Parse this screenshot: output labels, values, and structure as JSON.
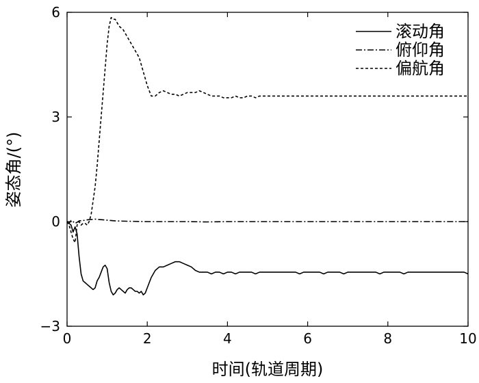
{
  "chart_data": {
    "type": "line",
    "xlabel": "时间(轨道周期)",
    "ylabel": "姿态角/(°)",
    "xlim": [
      0,
      10
    ],
    "ylim": [
      -3,
      6
    ],
    "xticks": [
      0,
      2,
      4,
      6,
      8,
      10
    ],
    "yticks": [
      -3,
      0,
      3,
      6
    ],
    "grid": false,
    "legend_position": "top-right",
    "series": [
      {
        "name": "滚动角",
        "line_style": "solid",
        "color": "#000000",
        "x": [
          0,
          0.05,
          0.1,
          0.15,
          0.2,
          0.25,
          0.3,
          0.35,
          0.4,
          0.45,
          0.5,
          0.55,
          0.6,
          0.65,
          0.7,
          0.75,
          0.8,
          0.85,
          0.9,
          0.95,
          1.0,
          1.05,
          1.1,
          1.15,
          1.2,
          1.25,
          1.3,
          1.35,
          1.4,
          1.45,
          1.5,
          1.55,
          1.6,
          1.65,
          1.7,
          1.75,
          1.8,
          1.85,
          1.9,
          1.95,
          2.0,
          2.1,
          2.2,
          2.3,
          2.4,
          2.5,
          2.6,
          2.7,
          2.8,
          2.9,
          3.0,
          3.1,
          3.2,
          3.3,
          3.4,
          3.5,
          3.6,
          3.7,
          3.8,
          3.9,
          4.0,
          4.1,
          4.2,
          4.3,
          4.4,
          4.5,
          4.6,
          4.7,
          4.8,
          4.9,
          5.0,
          5.1,
          5.2,
          5.3,
          5.4,
          5.5,
          5.6,
          5.7,
          5.8,
          5.9,
          6.0,
          6.1,
          6.2,
          6.3,
          6.4,
          6.5,
          6.6,
          6.7,
          6.8,
          6.9,
          7.0,
          7.1,
          7.2,
          7.3,
          7.4,
          7.5,
          7.6,
          7.7,
          7.8,
          7.9,
          8.0,
          8.1,
          8.2,
          8.3,
          8.4,
          8.5,
          8.6,
          8.7,
          8.8,
          8.9,
          9.0,
          9.1,
          9.2,
          9.3,
          9.4,
          9.5,
          9.6,
          9.7,
          9.8,
          9.9,
          10.0
        ],
        "y": [
          0,
          -0.05,
          -0.1,
          -0.3,
          -0.15,
          -0.35,
          -1.0,
          -1.5,
          -1.7,
          -1.75,
          -1.8,
          -1.85,
          -1.9,
          -1.95,
          -1.9,
          -1.7,
          -1.6,
          -1.45,
          -1.3,
          -1.25,
          -1.35,
          -1.75,
          -2.0,
          -2.1,
          -2.05,
          -1.95,
          -1.9,
          -1.95,
          -2.0,
          -2.05,
          -1.95,
          -1.9,
          -1.9,
          -1.95,
          -2.0,
          -2.0,
          -2.05,
          -2.0,
          -2.1,
          -2.05,
          -1.9,
          -1.6,
          -1.4,
          -1.3,
          -1.3,
          -1.25,
          -1.2,
          -1.15,
          -1.15,
          -1.2,
          -1.25,
          -1.3,
          -1.4,
          -1.45,
          -1.45,
          -1.45,
          -1.5,
          -1.45,
          -1.45,
          -1.5,
          -1.45,
          -1.45,
          -1.5,
          -1.45,
          -1.45,
          -1.45,
          -1.45,
          -1.5,
          -1.45,
          -1.45,
          -1.45,
          -1.45,
          -1.45,
          -1.45,
          -1.45,
          -1.45,
          -1.45,
          -1.45,
          -1.5,
          -1.45,
          -1.45,
          -1.45,
          -1.45,
          -1.45,
          -1.5,
          -1.45,
          -1.45,
          -1.45,
          -1.45,
          -1.5,
          -1.45,
          -1.45,
          -1.45,
          -1.45,
          -1.45,
          -1.45,
          -1.45,
          -1.45,
          -1.5,
          -1.45,
          -1.45,
          -1.45,
          -1.45,
          -1.45,
          -1.5,
          -1.45,
          -1.45,
          -1.45,
          -1.45,
          -1.45,
          -1.45,
          -1.45,
          -1.45,
          -1.45,
          -1.45,
          -1.45,
          -1.45,
          -1.45,
          -1.45,
          -1.45,
          -1.5
        ]
      },
      {
        "name": "俯仰角",
        "line_style": "dashdot",
        "color": "#000000",
        "x": [
          0,
          0.05,
          0.1,
          0.15,
          0.2,
          0.25,
          0.3,
          0.4,
          0.5,
          0.6,
          0.7,
          0.8,
          0.9,
          1.0,
          1.2,
          1.5,
          2.0,
          2.5,
          3.0,
          3.5,
          4.0,
          4.5,
          5.0,
          5.5,
          6.0,
          6.5,
          7.0,
          7.5,
          8.0,
          8.5,
          9.0,
          9.5,
          10.0
        ],
        "y": [
          0,
          -0.05,
          0.03,
          0.0,
          -0.05,
          -0.02,
          0.02,
          0.03,
          0.05,
          0.06,
          0.07,
          0.06,
          0.05,
          0.04,
          0.02,
          0.01,
          0.0,
          0.0,
          0.0,
          -0.01,
          0.0,
          0.0,
          0.0,
          0.0,
          0.0,
          0.0,
          0.0,
          0.0,
          0.0,
          0.0,
          0.0,
          0.0,
          0.0
        ]
      },
      {
        "name": "偏航角",
        "line_style": "dashed",
        "color": "#000000",
        "x": [
          0,
          0.05,
          0.1,
          0.15,
          0.2,
          0.25,
          0.3,
          0.35,
          0.4,
          0.45,
          0.5,
          0.55,
          0.6,
          0.65,
          0.7,
          0.75,
          0.8,
          0.85,
          0.9,
          0.95,
          1.0,
          1.05,
          1.1,
          1.15,
          1.2,
          1.3,
          1.4,
          1.5,
          1.6,
          1.7,
          1.8,
          1.9,
          2.0,
          2.1,
          2.2,
          2.3,
          2.4,
          2.5,
          2.6,
          2.7,
          2.8,
          2.9,
          3.0,
          3.1,
          3.2,
          3.3,
          3.4,
          3.5,
          3.6,
          3.7,
          3.8,
          3.9,
          4.0,
          4.1,
          4.2,
          4.3,
          4.4,
          4.5,
          4.6,
          4.7,
          4.8,
          4.9,
          5.0,
          5.2,
          5.4,
          5.6,
          5.8,
          6.0,
          6.2,
          6.4,
          6.6,
          6.8,
          7.0,
          7.2,
          7.4,
          7.6,
          7.8,
          8.0,
          8.2,
          8.4,
          8.6,
          8.8,
          9.0,
          9.2,
          9.4,
          9.6,
          9.8,
          10.0
        ],
        "y": [
          0,
          -0.1,
          -0.3,
          -0.5,
          -0.6,
          -0.1,
          0.0,
          -0.1,
          -0.05,
          -0.05,
          -0.1,
          0.0,
          0.2,
          0.6,
          1.0,
          1.6,
          2.3,
          3.0,
          3.7,
          4.4,
          5.1,
          5.6,
          5.85,
          5.8,
          5.8,
          5.6,
          5.5,
          5.3,
          5.1,
          4.9,
          4.7,
          4.3,
          3.9,
          3.6,
          3.6,
          3.7,
          3.75,
          3.7,
          3.65,
          3.65,
          3.6,
          3.65,
          3.7,
          3.7,
          3.7,
          3.75,
          3.7,
          3.65,
          3.6,
          3.6,
          3.6,
          3.55,
          3.55,
          3.55,
          3.6,
          3.55,
          3.55,
          3.6,
          3.6,
          3.55,
          3.6,
          3.6,
          3.6,
          3.6,
          3.6,
          3.6,
          3.6,
          3.6,
          3.6,
          3.6,
          3.6,
          3.6,
          3.6,
          3.6,
          3.6,
          3.6,
          3.6,
          3.6,
          3.6,
          3.6,
          3.6,
          3.6,
          3.6,
          3.6,
          3.6,
          3.6,
          3.6,
          3.6
        ]
      }
    ]
  }
}
